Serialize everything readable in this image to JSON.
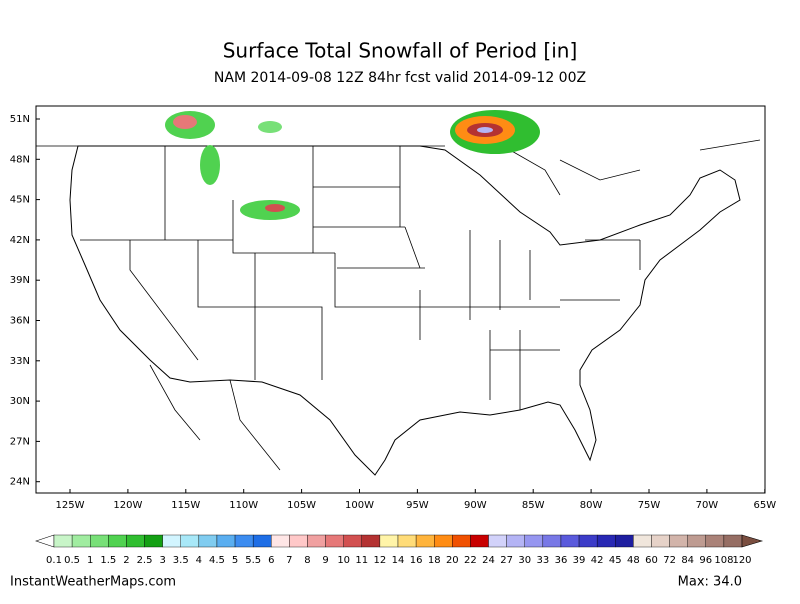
{
  "header": {
    "title": "Surface Total Snowfall of Period [in]",
    "subtitle": "NAM 2014-09-08 12Z 84hr fcst valid 2014-09-12 00Z"
  },
  "map": {
    "lat_labels": [
      "51N",
      "48N",
      "45N",
      "42N",
      "39N",
      "36N",
      "33N",
      "30N",
      "27N",
      "24N"
    ],
    "lon_labels": [
      "125W",
      "120W",
      "115W",
      "110W",
      "105W",
      "100W",
      "95W",
      "90W",
      "85W",
      "80W",
      "75W",
      "70W",
      "65W"
    ]
  },
  "colorbar": {
    "labels": [
      "0.1",
      "0.5",
      "1",
      "1.5",
      "2",
      "2.5",
      "3",
      "3.5",
      "4",
      "4.5",
      "5",
      "5.5",
      "6",
      "7",
      "8",
      "9",
      "10",
      "11",
      "12",
      "14",
      "16",
      "18",
      "20",
      "22",
      "24",
      "27",
      "30",
      "33",
      "36",
      "39",
      "42",
      "45",
      "48",
      "60",
      "72",
      "84",
      "96",
      "108",
      "120"
    ],
    "under_color": "#ffffff",
    "over_color": "#7a4e40",
    "colors": [
      "#c8f5c8",
      "#a0eca0",
      "#78e078",
      "#50d250",
      "#30be30",
      "#14a014",
      "#d2f5ff",
      "#a8e8f8",
      "#80ccf0",
      "#5aaef0",
      "#3c8cf0",
      "#1e6ee6",
      "#ffe6e6",
      "#ffc8c8",
      "#f0a0a0",
      "#e67878",
      "#d25050",
      "#b43232",
      "#fff4a8",
      "#ffdc78",
      "#ffb43c",
      "#ff8c14",
      "#f05000",
      "#c80000",
      "#d2d2fa",
      "#b4b4f5",
      "#9696f0",
      "#7878e6",
      "#5a5adc",
      "#3c3cc8",
      "#2828b4",
      "#1e1ea0",
      "#f0e6dc",
      "#e6d2c8",
      "#d2b4aa",
      "#be9b91",
      "#aa8278",
      "#966e64"
    ]
  },
  "footer": {
    "source": "InstantWeatherMaps.com",
    "max": "Max:  34.0"
  }
}
